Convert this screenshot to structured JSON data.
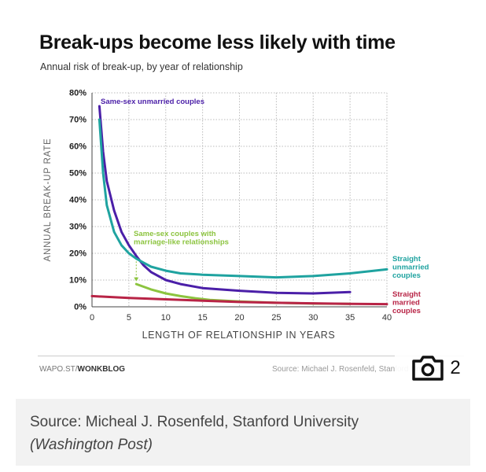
{
  "chart_data": {
    "type": "line",
    "title": "Break-ups become less likely with time",
    "subtitle": "Annual risk of break-up, by year of relationship",
    "xlabel": "LENGTH OF RELATIONSHIP IN YEARS",
    "ylabel": "ANNUAL BREAK-UP RATE",
    "xlim": [
      0,
      40
    ],
    "ylim": [
      0,
      80
    ],
    "x_ticks": [
      "0",
      "5",
      "10",
      "15",
      "20",
      "25",
      "30",
      "35",
      "40"
    ],
    "y_ticks": [
      "0%",
      "10%",
      "20%",
      "30%",
      "40%",
      "50%",
      "60%",
      "70%",
      "80%"
    ],
    "grid": true,
    "series": [
      {
        "name": "Same-sex unmarried couples",
        "color": "#4b1fa8",
        "label_lines": [
          "Same-sex unmarried couples"
        ],
        "points": [
          [
            1,
            75
          ],
          [
            1.5,
            58
          ],
          [
            2,
            47
          ],
          [
            3,
            36
          ],
          [
            4,
            28
          ],
          [
            5,
            23
          ],
          [
            6,
            19
          ],
          [
            7,
            15.5
          ],
          [
            8,
            13
          ],
          [
            10,
            10
          ],
          [
            12,
            8.5
          ],
          [
            15,
            7
          ],
          [
            20,
            6
          ],
          [
            25,
            5.2
          ],
          [
            30,
            5
          ],
          [
            35,
            5.5
          ]
        ]
      },
      {
        "name": "Straight unmarried couples",
        "color": "#1fa3a0",
        "label_lines": [
          "Straight",
          "unmarried",
          "couples"
        ],
        "points": [
          [
            1,
            70
          ],
          [
            1.5,
            50
          ],
          [
            2,
            38
          ],
          [
            3,
            28
          ],
          [
            4,
            23
          ],
          [
            5,
            20
          ],
          [
            6,
            18
          ],
          [
            7,
            16.5
          ],
          [
            8,
            15
          ],
          [
            10,
            13.5
          ],
          [
            12,
            12.5
          ],
          [
            15,
            12
          ],
          [
            20,
            11.5
          ],
          [
            25,
            11
          ],
          [
            30,
            11.5
          ],
          [
            35,
            12.5
          ],
          [
            40,
            14
          ]
        ]
      },
      {
        "name": "Same-sex couples with marriage-like relationships",
        "color": "#8cc43f",
        "label_lines": [
          "Same-sex couples with",
          "marriage-like relationships"
        ],
        "points": [
          [
            6,
            8.5
          ],
          [
            8,
            6.5
          ],
          [
            10,
            5
          ],
          [
            12,
            4
          ],
          [
            14,
            3.2
          ],
          [
            16,
            2.6
          ],
          [
            20,
            2
          ],
          [
            25,
            1.5
          ],
          [
            30,
            1.2
          ],
          [
            35,
            1.1
          ]
        ]
      },
      {
        "name": "Straight married couples",
        "color": "#b82446",
        "label_lines": [
          "Straight",
          "married",
          "couples"
        ],
        "points": [
          [
            0,
            4
          ],
          [
            5,
            3.3
          ],
          [
            10,
            2.8
          ],
          [
            15,
            2.3
          ],
          [
            20,
            1.8
          ],
          [
            25,
            1.5
          ],
          [
            30,
            1.3
          ],
          [
            35,
            1.1
          ],
          [
            40,
            1
          ]
        ]
      }
    ]
  },
  "footer": {
    "credit_prefix": "WAPO.ST/",
    "credit_brand": "WONKBLOG",
    "source": "Source: Michael J. Rosenfeld, Stanford University"
  },
  "gallery": {
    "icon": "camera-icon",
    "count": "2"
  },
  "caption": {
    "line1": "Source: Micheal J. Rosenfeld, Stanford University",
    "line2": "(Washington Post)"
  }
}
